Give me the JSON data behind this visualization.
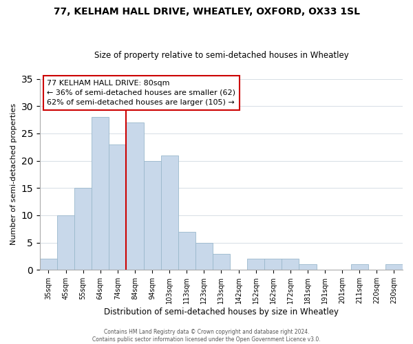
{
  "title": "77, KELHAM HALL DRIVE, WHEATLEY, OXFORD, OX33 1SL",
  "subtitle": "Size of property relative to semi-detached houses in Wheatley",
  "xlabel": "Distribution of semi-detached houses by size in Wheatley",
  "ylabel": "Number of semi-detached properties",
  "bin_labels": [
    "35sqm",
    "45sqm",
    "55sqm",
    "64sqm",
    "74sqm",
    "84sqm",
    "94sqm",
    "103sqm",
    "113sqm",
    "123sqm",
    "133sqm",
    "142sqm",
    "152sqm",
    "162sqm",
    "172sqm",
    "181sqm",
    "191sqm",
    "201sqm",
    "211sqm",
    "220sqm",
    "230sqm"
  ],
  "bar_values": [
    2,
    10,
    15,
    28,
    23,
    27,
    20,
    21,
    7,
    5,
    3,
    0,
    2,
    2,
    2,
    1,
    0,
    0,
    1,
    0,
    1
  ],
  "bar_color": "#c8d8ea",
  "bar_edge_color": "#9ab8cc",
  "vline_color": "#cc0000",
  "annotation_title": "77 KELHAM HALL DRIVE: 80sqm",
  "annotation_line1": "← 36% of semi-detached houses are smaller (62)",
  "annotation_line2": "62% of semi-detached houses are larger (105) →",
  "box_facecolor": "#ffffff",
  "box_edgecolor": "#cc0000",
  "ylim": [
    0,
    35
  ],
  "yticks": [
    0,
    5,
    10,
    15,
    20,
    25,
    30,
    35
  ],
  "footer1": "Contains HM Land Registry data © Crown copyright and database right 2024.",
  "footer2": "Contains public sector information licensed under the Open Government Licence v3.0."
}
